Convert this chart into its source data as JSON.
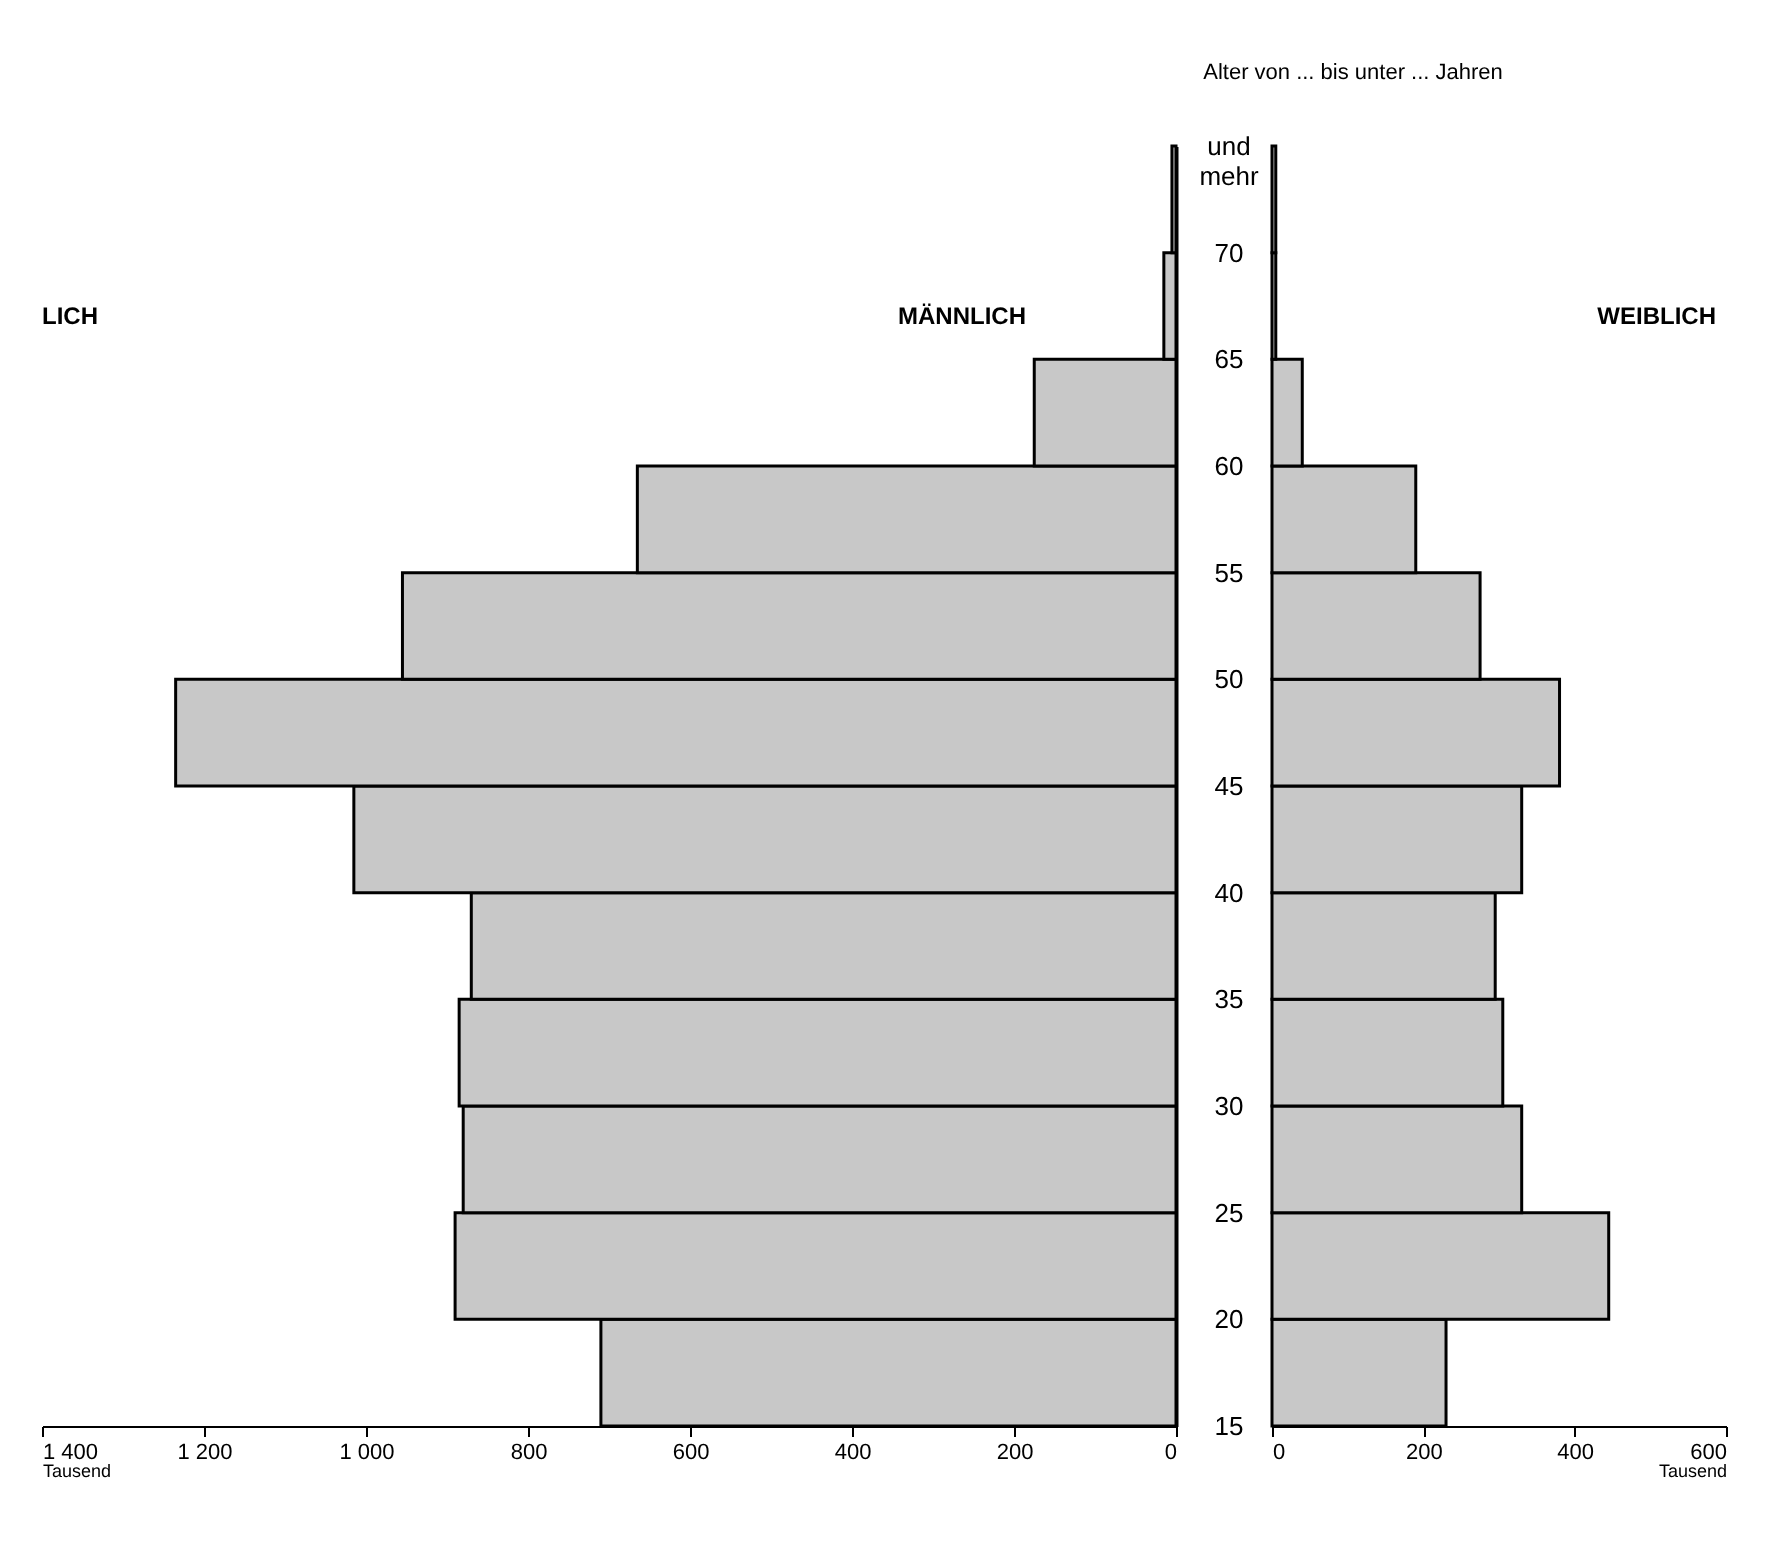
{
  "chart_data": [
    {
      "type": "histogram",
      "orientation": "horizontal",
      "bins": [
        15,
        20,
        25,
        30,
        35,
        40,
        45,
        50,
        55,
        60,
        65,
        70,
        75
      ],
      "values": [
        710,
        890,
        880,
        885,
        870,
        1015,
        1235,
        955,
        665,
        175,
        15,
        5
      ],
      "color": "#c8c8c8",
      "xlim": [
        1400,
        0
      ],
      "xticks": [
        0,
        200,
        400,
        600,
        800,
        {
          "value": 1000,
          "label": "1 000"
        },
        {
          "value": 1200,
          "label": "1 200"
        },
        {
          "value": 1400,
          "label": "1 400"
        }
      ],
      "xlabel": "Tausend",
      "ylim": [
        15,
        75
      ],
      "tick_labels": "x",
      "annotations": [
        "LICH",
        "MÄNNLICH"
      ]
    },
    {
      "type": "histogram",
      "orientation": "horizontal",
      "bins": [
        15,
        20,
        25,
        30,
        35,
        40,
        45,
        50,
        55,
        60,
        65,
        70,
        75
      ],
      "values": [
        230,
        445,
        330,
        305,
        295,
        330,
        380,
        275,
        190,
        40,
        5,
        5
      ],
      "color": "#c8c8c8",
      "xlim": [
        0,
        600
      ],
      "xticks": [
        0,
        200,
        400,
        600
      ],
      "xlabel": "Tausend",
      "ylim": [
        15,
        75
      ],
      "yticks": [
        15,
        20,
        25,
        30,
        35,
        40,
        45,
        50,
        55,
        60,
        65,
        70,
        {
          "value": 75,
          "label": "und mehr"
        }
      ],
      "ylabel": "Alter von ... bis unter ... Jahren",
      "annotations": [
        "WEIBLICH"
      ]
    }
  ]
}
